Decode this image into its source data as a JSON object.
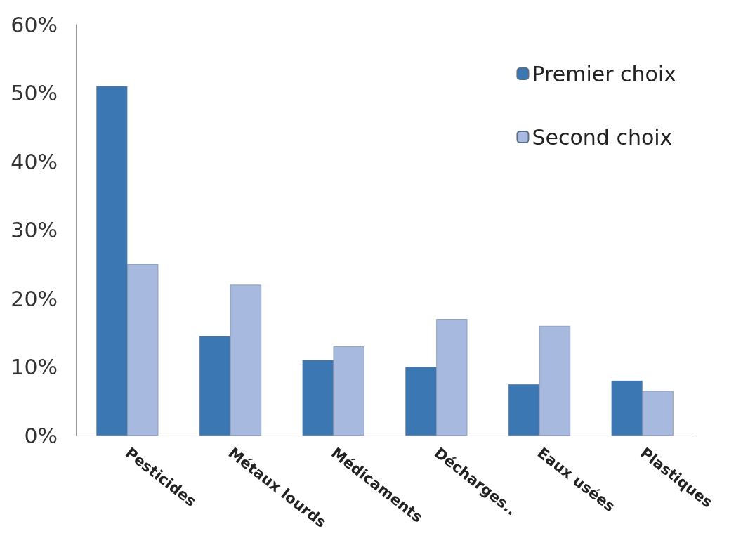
{
  "chart_data": {
    "type": "bar",
    "categories": [
      "Pesticides",
      "Métaux lourds",
      "Médicaments",
      "Décharges..",
      "Eaux usées",
      "Plastiques"
    ],
    "series": [
      {
        "name": "Premier choix",
        "color": "#3b78b3",
        "values": [
          51,
          14.5,
          11,
          10,
          7.5,
          8
        ]
      },
      {
        "name": "Second choix",
        "color": "#a7b9de",
        "values": [
          25,
          22,
          13,
          17,
          16,
          6.5
        ]
      }
    ],
    "ylim": [
      0,
      60
    ],
    "yticks": [
      {
        "value": 0,
        "label": "0%"
      },
      {
        "value": 10,
        "label": "10%"
      },
      {
        "value": 20,
        "label": "20%"
      },
      {
        "value": 30,
        "label": "30%"
      },
      {
        "value": 40,
        "label": "40%"
      },
      {
        "value": 50,
        "label": "50%"
      },
      {
        "value": 60,
        "label": "60%"
      }
    ],
    "grid": false,
    "legend": "top right"
  }
}
